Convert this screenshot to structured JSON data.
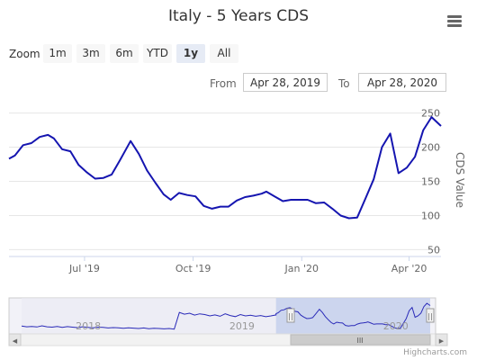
{
  "chart_data": {
    "type": "line",
    "title": "Italy - 5 Years CDS",
    "ylabel": "CDS Value",
    "ylim": [
      40,
      260
    ],
    "yticks": [
      50,
      100,
      150,
      200,
      250
    ],
    "xlim": [
      "2019-04-28",
      "2020-04-28"
    ],
    "xticks": [
      {
        "date": "2019-07-01",
        "label": "Jul '19"
      },
      {
        "date": "2019-10-01",
        "label": "Oct '19"
      },
      {
        "date": "2020-01-01",
        "label": "Jan '20"
      },
      {
        "date": "2020-04-01",
        "label": "Apr '20"
      }
    ],
    "grid": true,
    "legend": "none",
    "series": [
      {
        "color": "#1515b0",
        "points": [
          [
            "2019-04-28",
            183
          ],
          [
            "2019-05-03",
            188
          ],
          [
            "2019-05-10",
            203
          ],
          [
            "2019-05-17",
            206
          ],
          [
            "2019-05-24",
            215
          ],
          [
            "2019-05-31",
            218
          ],
          [
            "2019-06-05",
            213
          ],
          [
            "2019-06-12",
            197
          ],
          [
            "2019-06-19",
            194
          ],
          [
            "2019-06-26",
            174
          ],
          [
            "2019-07-03",
            163
          ],
          [
            "2019-07-10",
            154
          ],
          [
            "2019-07-17",
            155
          ],
          [
            "2019-07-24",
            160
          ],
          [
            "2019-07-31",
            181
          ],
          [
            "2019-08-09",
            209
          ],
          [
            "2019-08-16",
            190
          ],
          [
            "2019-08-23",
            166
          ],
          [
            "2019-08-30",
            148
          ],
          [
            "2019-09-06",
            131
          ],
          [
            "2019-09-12",
            123
          ],
          [
            "2019-09-19",
            133
          ],
          [
            "2019-09-26",
            130
          ],
          [
            "2019-10-03",
            128
          ],
          [
            "2019-10-10",
            114
          ],
          [
            "2019-10-17",
            110
          ],
          [
            "2019-10-24",
            113
          ],
          [
            "2019-10-31",
            113
          ],
          [
            "2019-11-07",
            122
          ],
          [
            "2019-11-14",
            127
          ],
          [
            "2019-11-21",
            129
          ],
          [
            "2019-11-28",
            132
          ],
          [
            "2019-12-02",
            135
          ],
          [
            "2019-12-09",
            128
          ],
          [
            "2019-12-16",
            121
          ],
          [
            "2019-12-23",
            123
          ],
          [
            "2019-12-30",
            123
          ],
          [
            "2020-01-06",
            123
          ],
          [
            "2020-01-13",
            118
          ],
          [
            "2020-01-20",
            119
          ],
          [
            "2020-01-27",
            110
          ],
          [
            "2020-02-03",
            100
          ],
          [
            "2020-02-10",
            96
          ],
          [
            "2020-02-17",
            97
          ],
          [
            "2020-02-24",
            125
          ],
          [
            "2020-03-02",
            153
          ],
          [
            "2020-03-09",
            200
          ],
          [
            "2020-03-16",
            220
          ],
          [
            "2020-03-23",
            162
          ],
          [
            "2020-03-30",
            170
          ],
          [
            "2020-04-06",
            186
          ],
          [
            "2020-04-13",
            225
          ],
          [
            "2020-04-20",
            244
          ],
          [
            "2020-04-28",
            231
          ]
        ]
      }
    ]
  },
  "ui": {
    "zoom_label": "Zoom",
    "zoom_buttons": [
      "1m",
      "3m",
      "6m",
      "YTD",
      "1y",
      "All"
    ],
    "zoom_selected": "1y",
    "from_label": "From",
    "from_value": "Apr 28, 2019",
    "to_label": "To",
    "to_value": "Apr 28, 2020",
    "credit": "Highcharts.com"
  },
  "navigator": {
    "year_labels": [
      "2018",
      "2019",
      "2020"
    ],
    "selected_range": [
      "2019-04-28",
      "2020-04-28"
    ],
    "scroll_grip": "III",
    "handle_glyph": "||",
    "scroll_left_arrow": "◀",
    "scroll_right_arrow": "▶"
  },
  "icons": {
    "menu": "hamburger-menu-icon"
  }
}
